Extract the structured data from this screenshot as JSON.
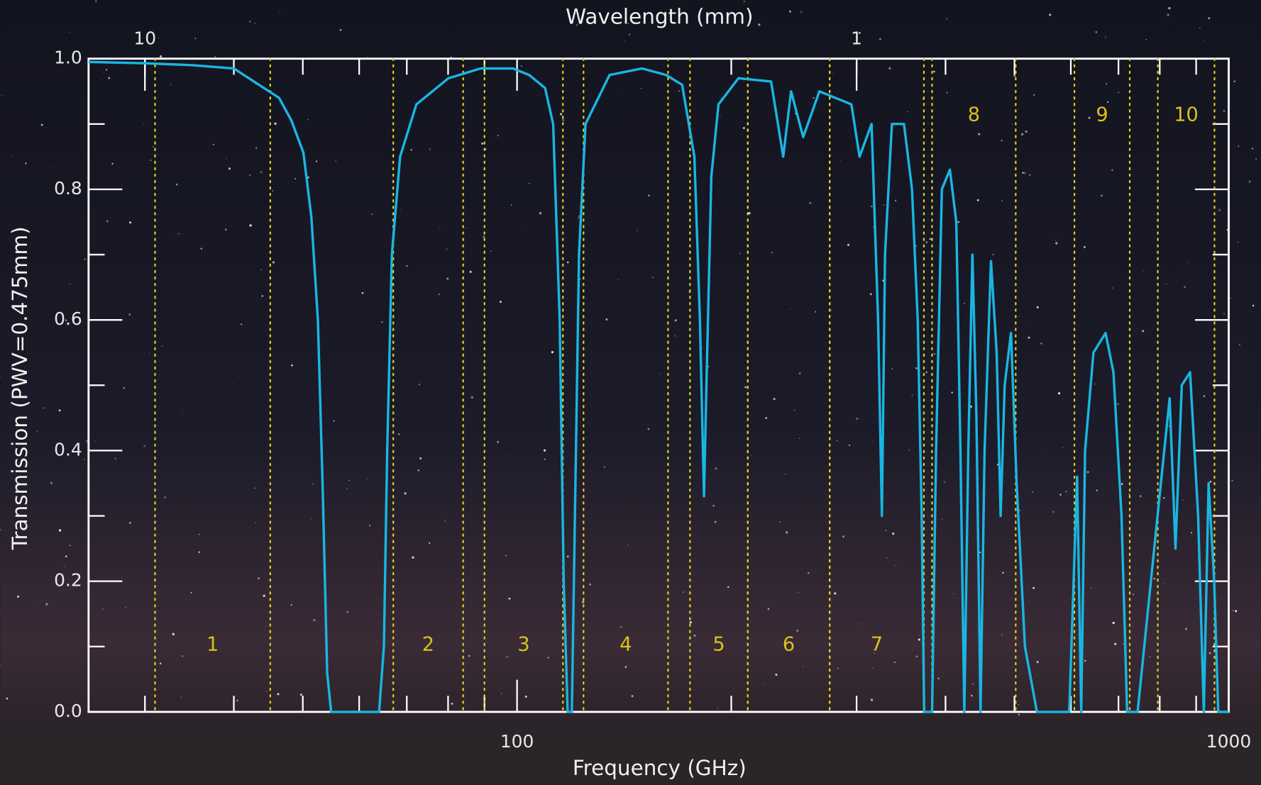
{
  "chart_data": {
    "type": "line",
    "xlabel": "Frequency (GHz)",
    "x2label": "Wavelength (mm)",
    "ylabel": "Transmission (PWV=0.475mm)",
    "xscale": "log",
    "xlim": [
      25,
      1000
    ],
    "xticks": [
      100,
      1000
    ],
    "xminorticks": [
      30,
      40,
      50,
      60,
      70,
      80,
      90,
      200,
      300,
      400,
      500,
      600,
      700,
      800,
      900
    ],
    "x2lim": [
      12,
      0.3
    ],
    "x2ticks": [
      10,
      1
    ],
    "ylim": [
      0,
      1
    ],
    "yticks": [
      {
        "value": 0,
        "label": "0.0"
      },
      {
        "value": 0.2,
        "label": "0.2"
      },
      {
        "value": 0.4,
        "label": "0.4"
      },
      {
        "value": 0.6,
        "label": "0.6"
      },
      {
        "value": 0.8,
        "label": "0.8"
      },
      {
        "value": 1,
        "label": "1.0"
      }
    ],
    "yminorticks": [
      0.1,
      0.3,
      0.5,
      0.7,
      0.9
    ],
    "color": "#19b6e2",
    "band_color": "#e2cf1c",
    "x": [
      25,
      30,
      35,
      40,
      46.3,
      48.2,
      50.1,
      51.4,
      52.5,
      53.3,
      54.1,
      54.8,
      64.0,
      65.0,
      65.7,
      66.7,
      68.5,
      72.2,
      80.1,
      88.9,
      98.7,
      104,
      109.5,
      112.4,
      114.8,
      116.3,
      117.8,
      119.4,
      120.6,
      122.2,
      124.8,
      134.9,
      149.8,
      162,
      170.6,
      177.5,
      180.7,
      183.1,
      185,
      187.5,
      191.9,
      204.7,
      227.5,
      236.6,
      242.7,
      252.4,
      266,
      280,
      295,
      302.9,
      314.9,
      321.6,
      325.6,
      328.9,
      336.3,
      349.7,
      358.9,
      365.6,
      370.3,
      373.3,
      383,
      388,
      395.3,
      405.7,
      414.2,
      419.8,
      425.1,
      430.6,
      436.4,
      442.1,
      448,
      453.9,
      463.4,
      472,
      478.1,
      484.4,
      494.4,
      503.5,
      517.2,
      537.7,
      596.9,
      612.3,
      620.5,
      628.3,
      645.6,
      671.4,
      688.7,
      706.9,
      719.9,
      744.7,
      794.3,
      826,
      841.8,
      859.1,
      882.5,
      905.8,
      922.6,
      937,
      954.1,
      966.7,
      1000
    ],
    "values": [
      0.995,
      0.993,
      0.99,
      0.985,
      0.94,
      0.905,
      0.856,
      0.758,
      0.6,
      0.35,
      0.06,
      0.0,
      0.0,
      0.1,
      0.4,
      0.7,
      0.85,
      0.93,
      0.97,
      0.985,
      0.985,
      0.975,
      0.955,
      0.9,
      0.6,
      0.2,
      0.0,
      0.0,
      0.3,
      0.7,
      0.9,
      0.975,
      0.985,
      0.975,
      0.96,
      0.85,
      0.6,
      0.33,
      0.55,
      0.82,
      0.93,
      0.97,
      0.965,
      0.85,
      0.95,
      0.88,
      0.95,
      0.94,
      0.93,
      0.85,
      0.9,
      0.6,
      0.3,
      0.7,
      0.9,
      0.9,
      0.8,
      0.6,
      0.3,
      0.0,
      0.0,
      0.4,
      0.8,
      0.83,
      0.75,
      0.4,
      0.0,
      0.4,
      0.7,
      0.45,
      0.0,
      0.4,
      0.69,
      0.55,
      0.3,
      0.5,
      0.58,
      0.35,
      0.1,
      0.0,
      0.0,
      0.36,
      0.0,
      0.4,
      0.55,
      0.58,
      0.52,
      0.3,
      0.0,
      0.0,
      0.3,
      0.48,
      0.25,
      0.5,
      0.52,
      0.3,
      0.0,
      0.35,
      0.2,
      0.0,
      0.0
    ],
    "bands": [
      {
        "label": "1",
        "range": [
          31,
          45
        ]
      },
      {
        "label": "2",
        "range": [
          67,
          84
        ]
      },
      {
        "label": "3",
        "range": [
          90,
          116
        ]
      },
      {
        "label": "4",
        "range": [
          124,
          163
        ]
      },
      {
        "label": "5",
        "range": [
          175,
          211
        ]
      },
      {
        "label": "6",
        "range": [
          211,
          275
        ]
      },
      {
        "label": "7",
        "range": [
          275,
          373
        ]
      },
      {
        "label": "8",
        "range": [
          383,
          502
        ]
      },
      {
        "label": "9",
        "range": [
          607,
          726
        ]
      },
      {
        "label": "10",
        "range": [
          795,
          955
        ]
      }
    ]
  }
}
